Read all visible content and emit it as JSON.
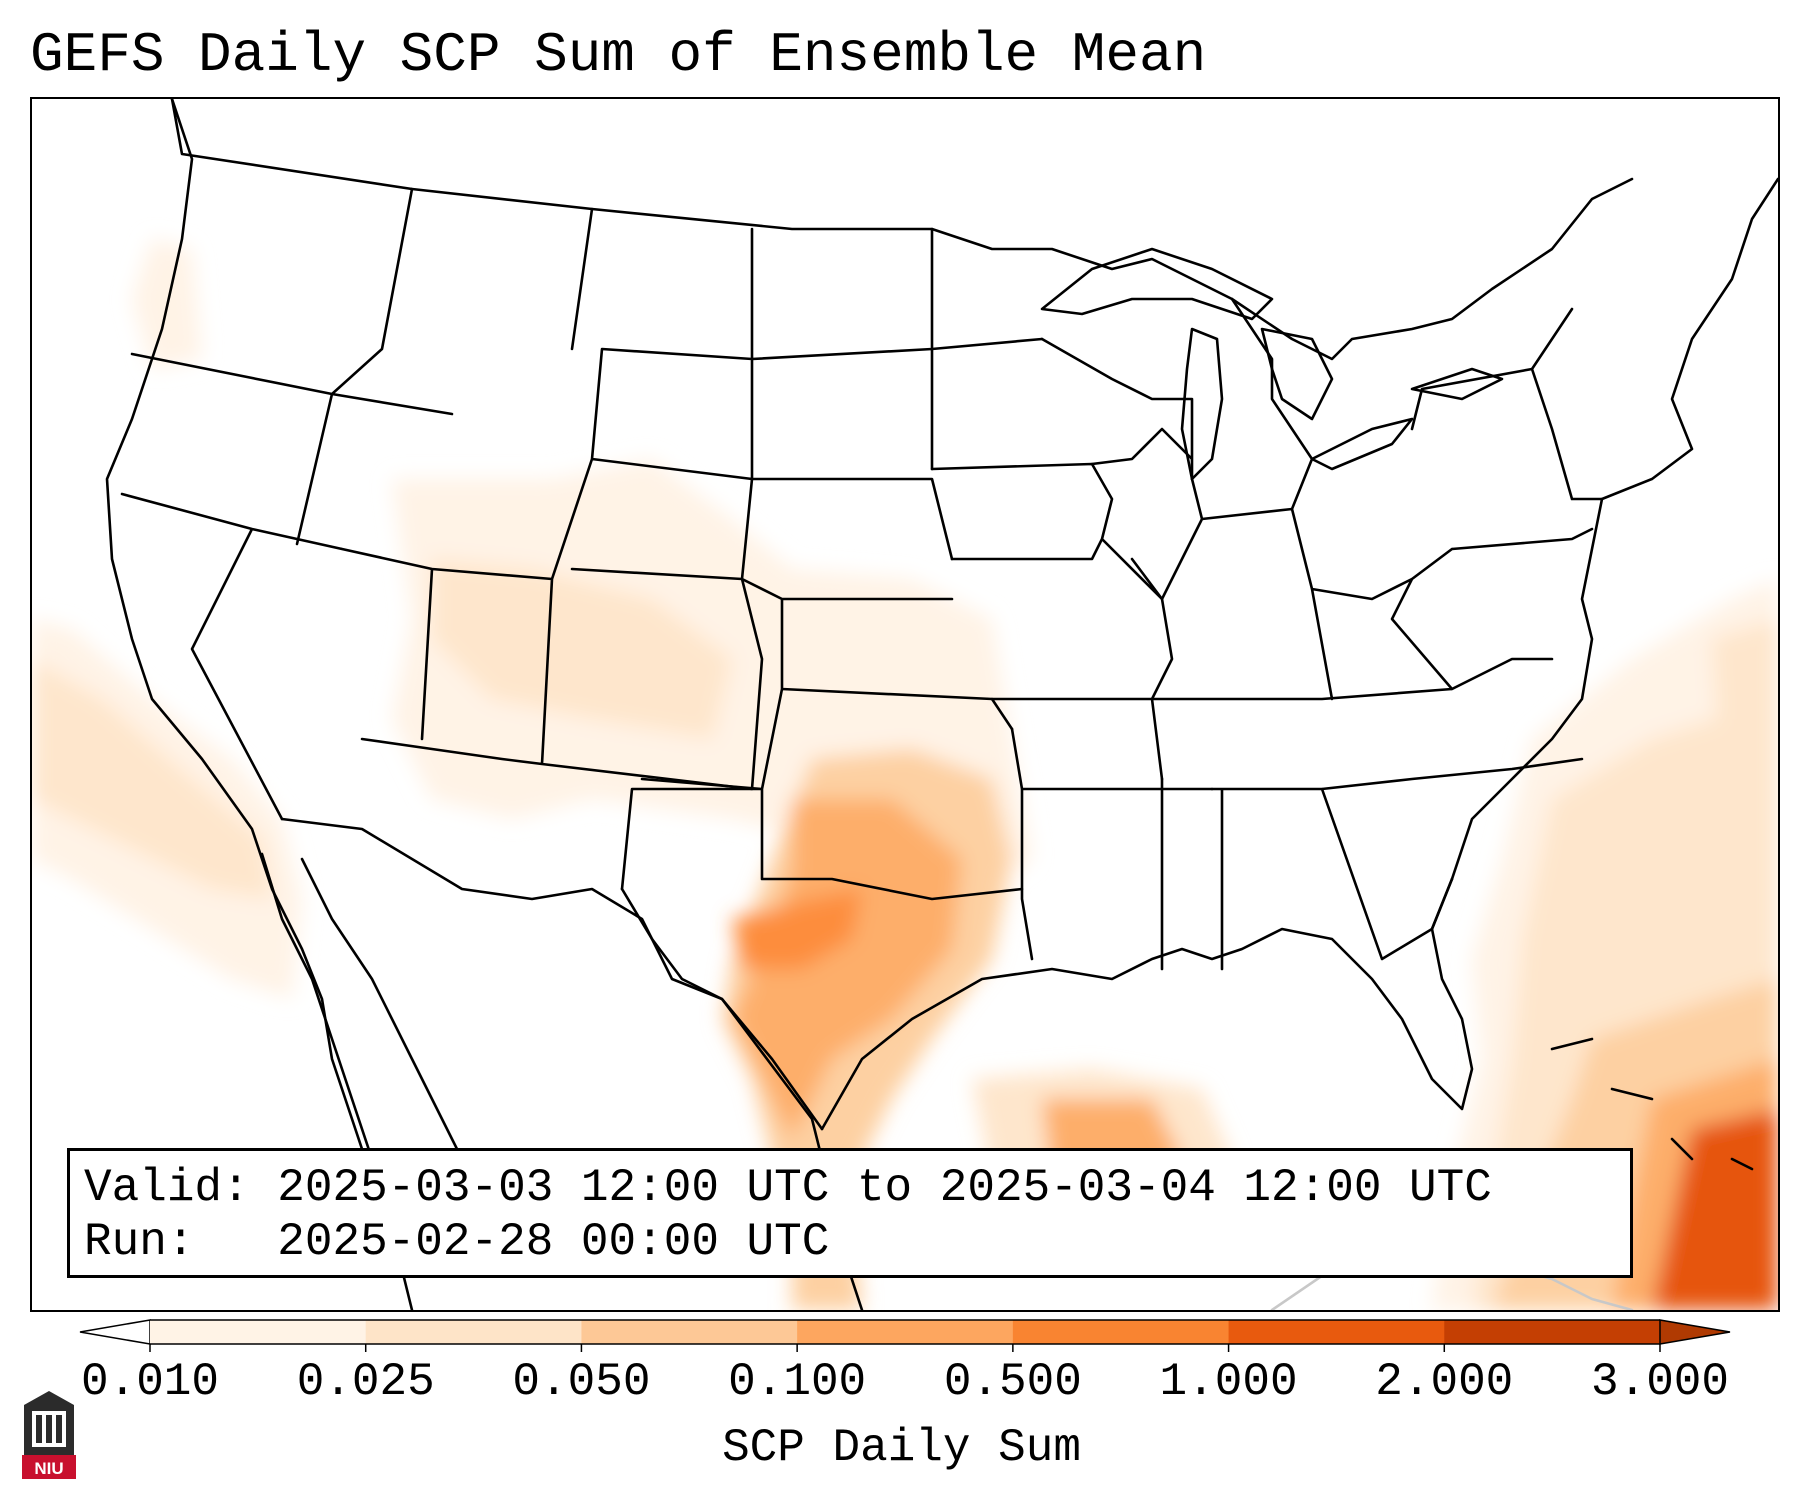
{
  "title": "GEFS Daily SCP Sum of Ensemble Mean",
  "info": {
    "valid_label": "Valid:",
    "valid_text": "2025-03-03 12:00 UTC to 2025-03-04 12:00 UTC",
    "run_label": "Run:",
    "run_text": "2025-02-28 00:00 UTC"
  },
  "colorbar": {
    "label": "SCP Daily Sum",
    "ticks": [
      "0.010",
      "0.025",
      "0.050",
      "0.100",
      "0.500",
      "1.000",
      "2.000",
      "3.000"
    ],
    "colors": [
      "#fff3e6",
      "#fee4c8",
      "#fdc896",
      "#fda65f",
      "#f98431",
      "#e85a0e",
      "#c43f03"
    ],
    "extend": "both"
  },
  "map": {
    "region": "CONUS",
    "fill_colors": {
      "lightest": "#fff3e6",
      "light": "#fee6cc",
      "medium": "#fdd0a2",
      "orange": "#fdae6b",
      "strong": "#fd8d3c",
      "deep": "#e6550d"
    },
    "outline_color": "#000000"
  },
  "logo": {
    "text": "NIU",
    "color": "#c8102e"
  }
}
